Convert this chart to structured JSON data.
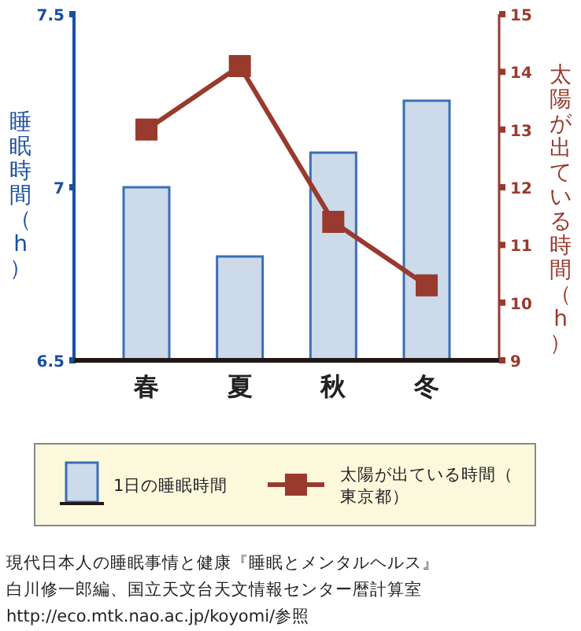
{
  "chart_data": {
    "type": "bar",
    "categories": [
      "春",
      "夏",
      "秋",
      "冬"
    ],
    "ylabel": "睡眠時間（h）",
    "y2label": "太陽が出ている時間（h）",
    "series": [
      {
        "name": "1日の睡眠時間",
        "color": "#ccdaea",
        "values": [
          7.0,
          6.8,
          7.1,
          7.25
        ]
      },
      {
        "name": "太陽が出ている時間（東京都）",
        "type": "line",
        "axis": "y2",
        "color": "#983a2e",
        "marker": "square",
        "values": [
          13.0,
          14.1,
          11.4,
          10.3
        ]
      }
    ],
    "ylim": [
      6.5,
      7.5
    ],
    "yticks": [
      6.5,
      7,
      7.5
    ],
    "y2lim": [
      9,
      15
    ],
    "y2ticks": [
      9,
      10,
      11,
      12,
      13,
      14,
      15
    ],
    "legend": "bottom",
    "grid": false,
    "annotations": [
      "現代日本人の睡眠事情と健康『睡眠とメンタルヘルス』",
      "白川修一郎編、国立天文台天文情報センター暦計算室",
      "http://eco.mtk.nao.ac.jp/koyomi/参照"
    ]
  }
}
